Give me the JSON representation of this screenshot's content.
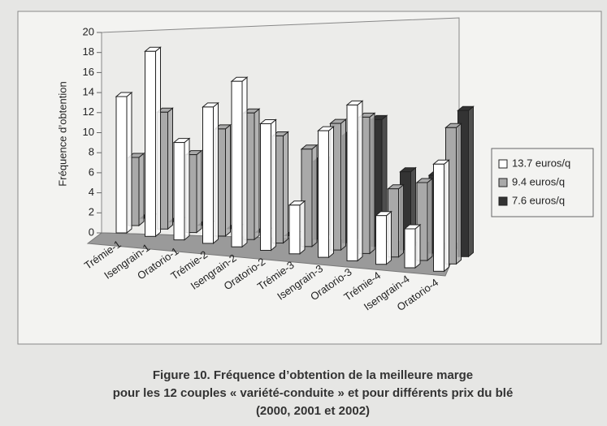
{
  "chart_data": {
    "type": "bar3d",
    "y_label": "Fréquence d’obtention",
    "title_lines": [
      "Figure 10. Fréquence d’obtention de la meilleure marge",
      "pour les 12 couples « variété-conduite » et pour différents prix du blé",
      "(2000, 2001 et 2002)"
    ],
    "categories": [
      "Trémie-1",
      "Isengrain-1",
      "Oratorio-1",
      "Trémie-2",
      "Isengrain-2",
      "Oratorio-2",
      "Trémie-3",
      "Isengrain-3",
      "Oratorio-3",
      "Trémie-4",
      "Isengrain-4",
      "Oratorio-4"
    ],
    "series": [
      {
        "name": "13.7 euros/q",
        "color": "#ffffff",
        "values": [
          14,
          19,
          10,
          14,
          17,
          13,
          5,
          13,
          16,
          5,
          4,
          11
        ]
      },
      {
        "name": "9.4 euros/q",
        "color": "#a9a9a9",
        "values": [
          7,
          12,
          8,
          11,
          13,
          11,
          10,
          13,
          14,
          7,
          8,
          14
        ]
      },
      {
        "name": "7.6 euros/q",
        "color": "#333333",
        "values": [
          0,
          0,
          0,
          0,
          0,
          0,
          8,
          11,
          13,
          8,
          8,
          15
        ]
      }
    ],
    "ylim": [
      0,
      20
    ],
    "yticks": [
      0,
      2,
      4,
      6,
      8,
      10,
      12,
      14,
      16,
      18,
      20
    ]
  }
}
